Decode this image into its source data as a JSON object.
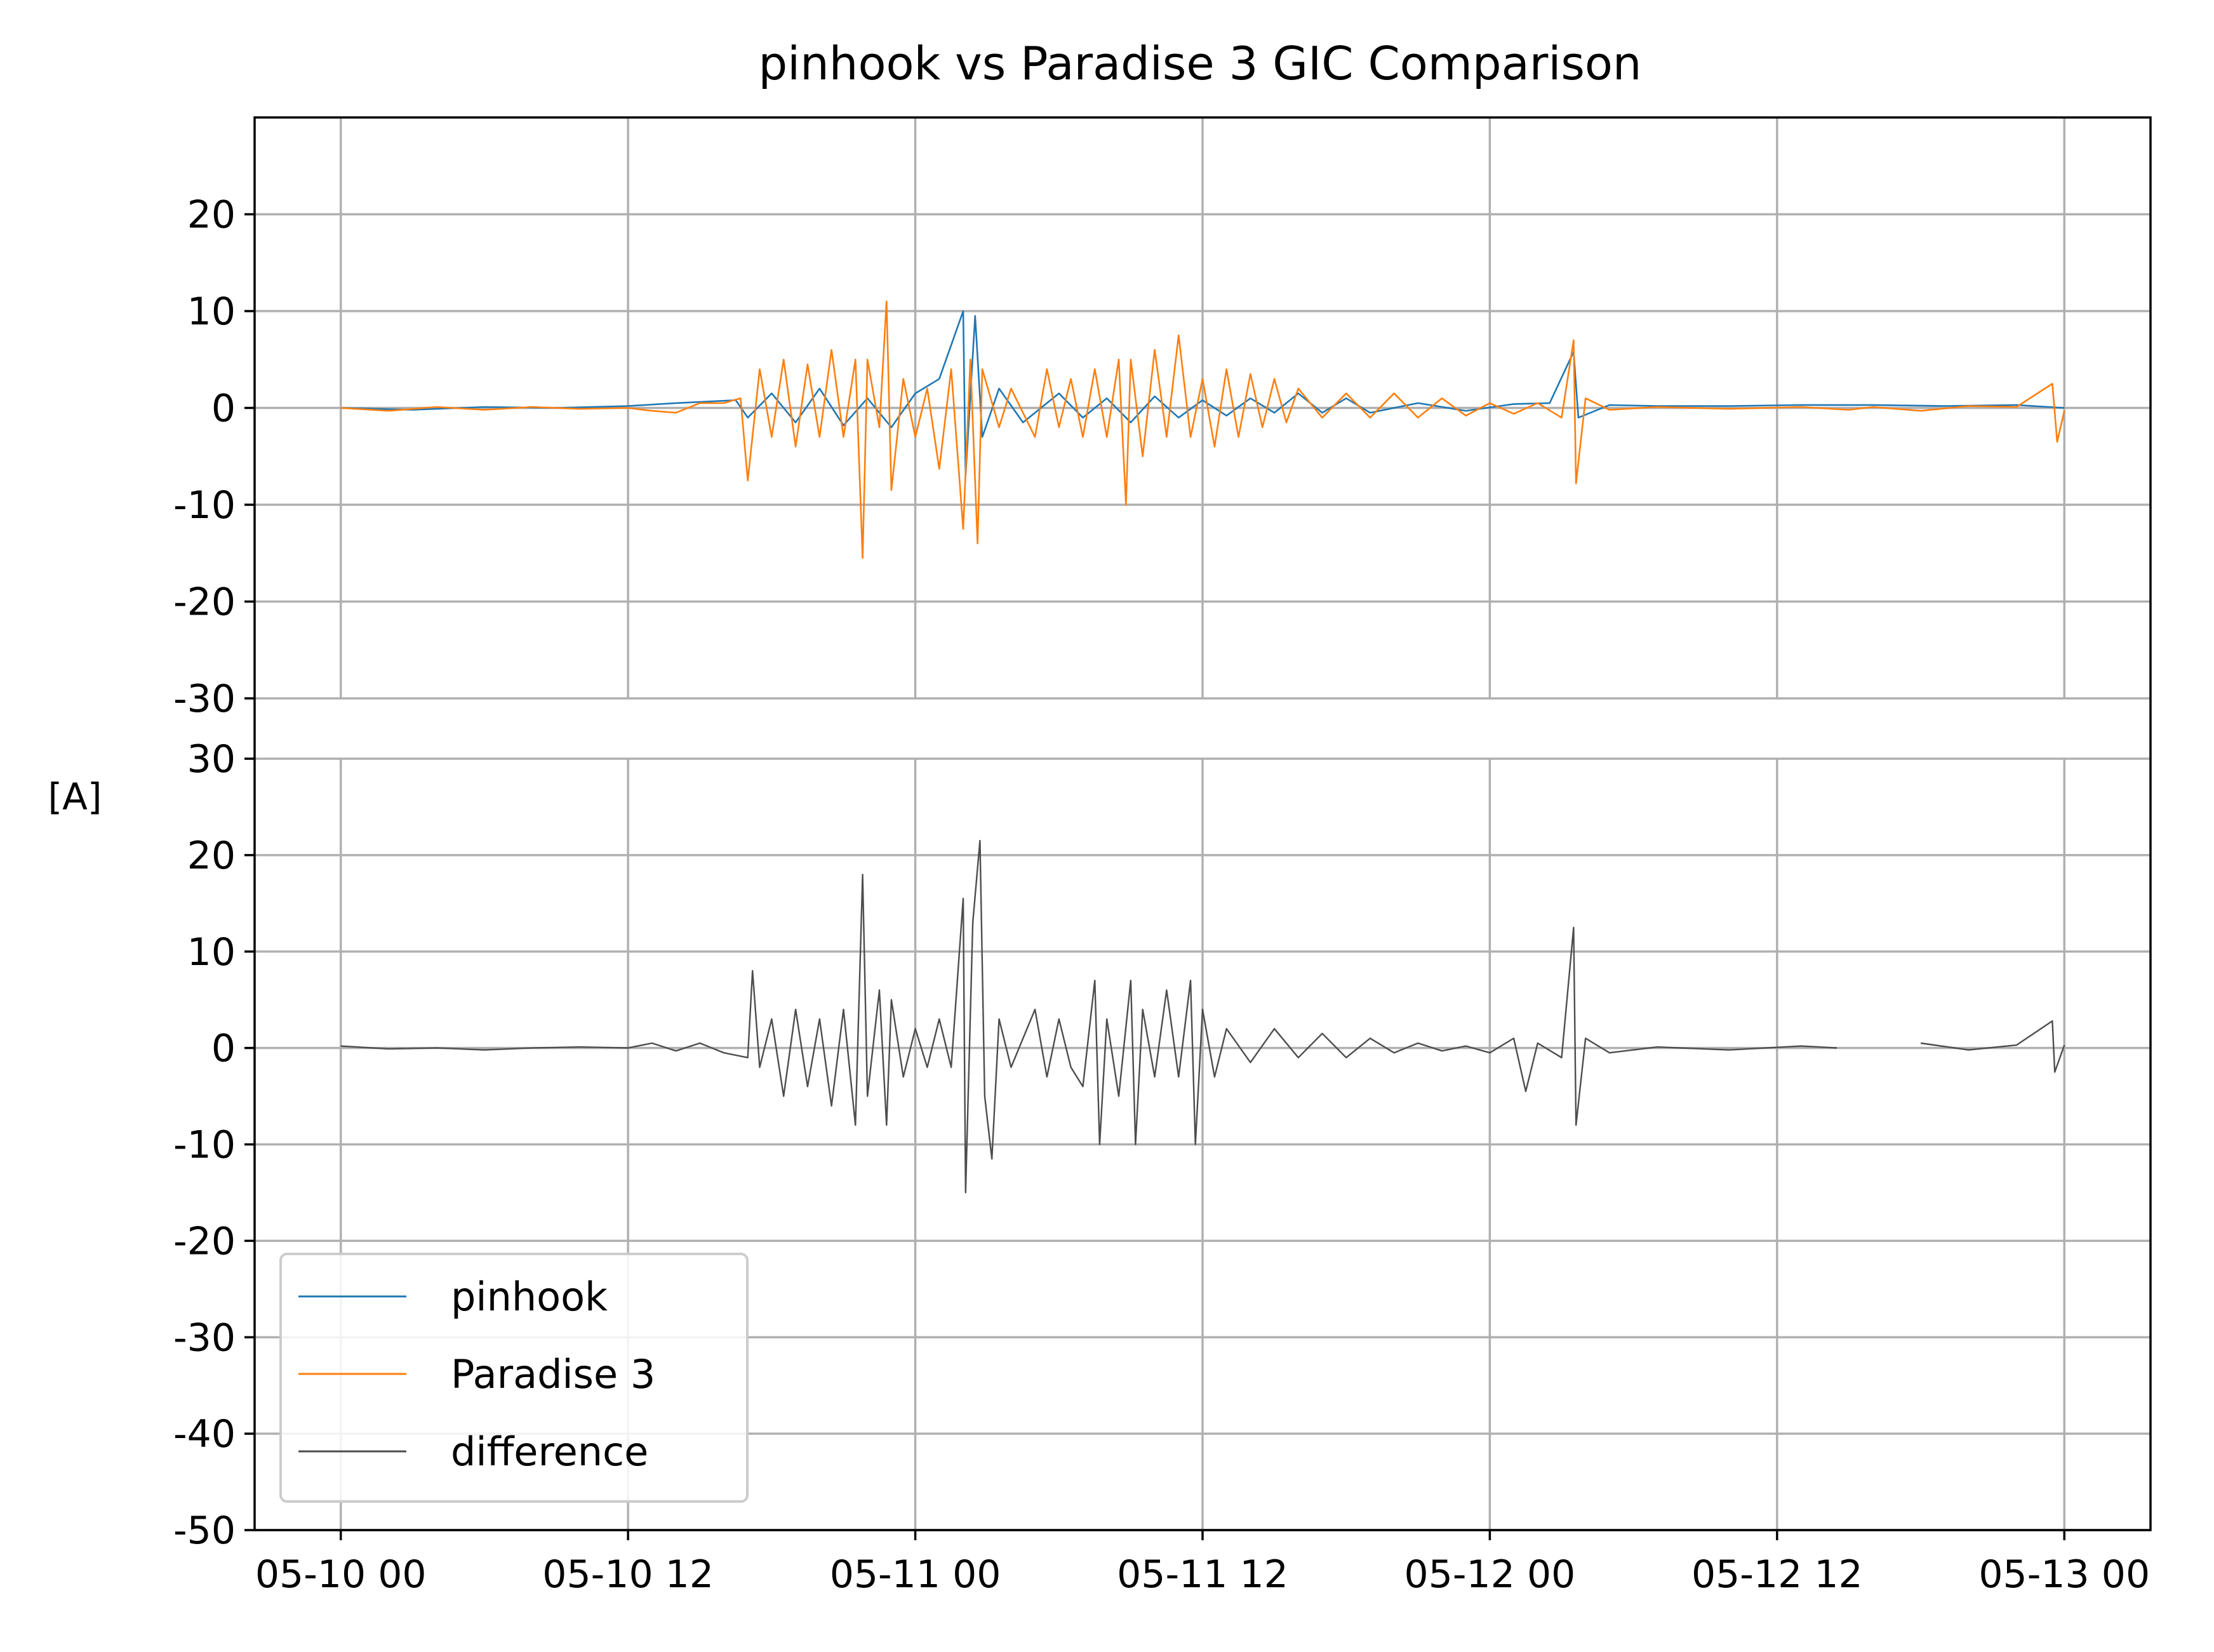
{
  "chart_data": {
    "type": "line",
    "title": "pinhook vs Paradise 3 GIC Comparison",
    "ylabel": "[A]",
    "xlabel": "",
    "x_ticks": [
      "05-10 00",
      "05-10 12",
      "05-11 00",
      "05-11 12",
      "05-12 00",
      "05-12 12",
      "05-13 00"
    ],
    "x_tick_hours": [
      0,
      12,
      24,
      36,
      48,
      60,
      72
    ],
    "x_range_hours": [
      -3.6,
      75.6
    ],
    "grid": true,
    "legend": {
      "placement": "lower-left",
      "entries": [
        "pinhook",
        "Paradise 3",
        "difference"
      ]
    },
    "panels": [
      {
        "name": "top",
        "ylim": [
          -30,
          30
        ],
        "y_ticks": [
          -30,
          -20,
          -10,
          0,
          10,
          20
        ],
        "y_tick_labels": [
          "-30",
          "-20",
          "-10",
          "0",
          "10",
          "20"
        ],
        "series": [
          {
            "name": "pinhook",
            "color": "#1f77b4",
            "points": [
              [
                0,
                0
              ],
              [
                3,
                -0.2
              ],
              [
                6,
                0.1
              ],
              [
                9,
                0
              ],
              [
                12,
                0.2
              ],
              [
                14,
                0.5
              ],
              [
                16.5,
                0.8
              ],
              [
                17,
                -1
              ],
              [
                18,
                1.5
              ],
              [
                19,
                -1.5
              ],
              [
                20,
                2
              ],
              [
                21,
                -1.8
              ],
              [
                22,
                1
              ],
              [
                23,
                -2
              ],
              [
                24,
                1.5
              ],
              [
                25,
                3
              ],
              [
                26,
                10
              ],
              [
                26.1,
                -7
              ],
              [
                26.5,
                9.5
              ],
              [
                26.8,
                -3
              ],
              [
                27.5,
                2
              ],
              [
                28.5,
                -1.5
              ],
              [
                30,
                1.5
              ],
              [
                31,
                -1
              ],
              [
                32,
                1
              ],
              [
                33,
                -1.5
              ],
              [
                34,
                1.2
              ],
              [
                35,
                -1
              ],
              [
                36,
                0.8
              ],
              [
                37,
                -0.8
              ],
              [
                38,
                1
              ],
              [
                39,
                -0.5
              ],
              [
                40,
                1.5
              ],
              [
                41,
                -0.5
              ],
              [
                42,
                1
              ],
              [
                43,
                -0.5
              ],
              [
                45,
                0.5
              ],
              [
                47,
                -0.3
              ],
              [
                49,
                0.4
              ],
              [
                50.5,
                0.5
              ],
              [
                51.5,
                5.8
              ],
              [
                51.7,
                -1
              ],
              [
                53,
                0.3
              ],
              [
                55,
                0.2
              ],
              [
                58,
                0.2
              ],
              [
                61,
                0.3
              ],
              [
                64,
                0.3
              ],
              [
                67,
                0.2
              ],
              [
                70,
                0.3
              ],
              [
                72,
                0
              ]
            ]
          },
          {
            "name": "Paradise 3",
            "color": "#ff7f0e",
            "points": [
              [
                0,
                0
              ],
              [
                2,
                -0.3
              ],
              [
                4,
                0.1
              ],
              [
                6,
                -0.2
              ],
              [
                8,
                0.1
              ],
              [
                10,
                -0.1
              ],
              [
                12,
                0
              ],
              [
                13,
                -0.3
              ],
              [
                14,
                -0.5
              ],
              [
                15,
                0.5
              ],
              [
                16,
                0.5
              ],
              [
                16.7,
                1
              ],
              [
                17,
                -7.5
              ],
              [
                17.5,
                4
              ],
              [
                18,
                -3
              ],
              [
                18.5,
                5
              ],
              [
                19,
                -4
              ],
              [
                19.5,
                4.5
              ],
              [
                20,
                -3
              ],
              [
                20.5,
                6
              ],
              [
                21,
                -3
              ],
              [
                21.5,
                5
              ],
              [
                21.8,
                -15.5
              ],
              [
                22,
                5
              ],
              [
                22.5,
                -2
              ],
              [
                22.8,
                11
              ],
              [
                23,
                -8.5
              ],
              [
                23.5,
                3
              ],
              [
                24,
                -3
              ],
              [
                24.5,
                2
              ],
              [
                25,
                -6.3
              ],
              [
                25.5,
                4
              ],
              [
                26,
                -12.5
              ],
              [
                26.3,
                5
              ],
              [
                26.6,
                -14
              ],
              [
                26.8,
                4
              ],
              [
                27.5,
                -2
              ],
              [
                28,
                2
              ],
              [
                29,
                -3
              ],
              [
                29.5,
                4
              ],
              [
                30,
                -2
              ],
              [
                30.5,
                3
              ],
              [
                31,
                -3
              ],
              [
                31.5,
                4
              ],
              [
                32,
                -3
              ],
              [
                32.5,
                5
              ],
              [
                32.8,
                -10
              ],
              [
                33,
                5
              ],
              [
                33.5,
                -5
              ],
              [
                34,
                6
              ],
              [
                34.5,
                -3
              ],
              [
                35,
                7.5
              ],
              [
                35.5,
                -3
              ],
              [
                36,
                3
              ],
              [
                36.5,
                -4
              ],
              [
                37,
                4
              ],
              [
                37.5,
                -3
              ],
              [
                38,
                3.5
              ],
              [
                38.5,
                -2
              ],
              [
                39,
                3
              ],
              [
                39.5,
                -1.5
              ],
              [
                40,
                2
              ],
              [
                41,
                -1
              ],
              [
                42,
                1.5
              ],
              [
                43,
                -1
              ],
              [
                44,
                1.5
              ],
              [
                45,
                -1
              ],
              [
                46,
                1
              ],
              [
                47,
                -0.8
              ],
              [
                48,
                0.5
              ],
              [
                49,
                -0.6
              ],
              [
                50,
                0.5
              ],
              [
                51,
                -1
              ],
              [
                51.5,
                7
              ],
              [
                51.6,
                -7.8
              ],
              [
                52,
                1
              ],
              [
                53,
                -0.2
              ],
              [
                55,
                0.1
              ],
              [
                58,
                -0.1
              ],
              [
                61,
                0.1
              ],
              [
                63,
                -0.2
              ],
              [
                64,
                0.1
              ],
              [
                66,
                -0.3
              ],
              [
                68,
                0.2
              ],
              [
                70,
                0.1
              ],
              [
                71.5,
                2.5
              ],
              [
                71.7,
                -3.5
              ],
              [
                72,
                -0.3
              ]
            ]
          }
        ]
      },
      {
        "name": "bottom",
        "ylim": [
          -50,
          30
        ],
        "y_ticks": [
          -50,
          -40,
          -30,
          -20,
          -10,
          0,
          10,
          20,
          30
        ],
        "y_tick_labels": [
          "-50",
          "-40",
          "-30",
          "-20",
          "-10",
          "0",
          "10",
          "20",
          "30"
        ],
        "series": [
          {
            "name": "difference",
            "color": "#4d4d4d",
            "points": [
              [
                0,
                0.2
              ],
              [
                2,
                -0.1
              ],
              [
                4,
                0
              ],
              [
                6,
                -0.2
              ],
              [
                8,
                0
              ],
              [
                10,
                0.1
              ],
              [
                12,
                0
              ],
              [
                13,
                0.5
              ],
              [
                14,
                -0.3
              ],
              [
                15,
                0.5
              ],
              [
                16,
                -0.5
              ],
              [
                17,
                -1
              ],
              [
                17.2,
                8
              ],
              [
                17.5,
                -2
              ],
              [
                18,
                3
              ],
              [
                18.5,
                -5
              ],
              [
                19,
                4
              ],
              [
                19.5,
                -4
              ],
              [
                20,
                3
              ],
              [
                20.5,
                -6
              ],
              [
                21,
                4
              ],
              [
                21.5,
                -8
              ],
              [
                21.8,
                18
              ],
              [
                22,
                -5
              ],
              [
                22.5,
                6
              ],
              [
                22.8,
                -8
              ],
              [
                23,
                5
              ],
              [
                23.5,
                -3
              ],
              [
                24,
                2
              ],
              [
                24.5,
                -2
              ],
              [
                25,
                3
              ],
              [
                25.5,
                -2
              ],
              [
                26,
                15.5
              ],
              [
                26.1,
                -15
              ],
              [
                26.4,
                13
              ],
              [
                26.7,
                21.5
              ],
              [
                26.9,
                -5
              ],
              [
                27.2,
                -11.5
              ],
              [
                27.5,
                3
              ],
              [
                28,
                -2
              ],
              [
                29,
                4
              ],
              [
                29.5,
                -3
              ],
              [
                30,
                3
              ],
              [
                30.5,
                -2
              ],
              [
                31,
                -4
              ],
              [
                31.5,
                7
              ],
              [
                31.7,
                -10
              ],
              [
                32,
                3
              ],
              [
                32.5,
                -5
              ],
              [
                33,
                7
              ],
              [
                33.2,
                -10
              ],
              [
                33.5,
                4
              ],
              [
                34,
                -3
              ],
              [
                34.5,
                6
              ],
              [
                35,
                -3
              ],
              [
                35.5,
                7
              ],
              [
                35.7,
                -10
              ],
              [
                36,
                4
              ],
              [
                36.5,
                -3
              ],
              [
                37,
                2
              ],
              [
                38,
                -1.5
              ],
              [
                39,
                2
              ],
              [
                40,
                -1
              ],
              [
                41,
                1.5
              ],
              [
                42,
                -1
              ],
              [
                43,
                1
              ],
              [
                44,
                -0.5
              ],
              [
                45,
                0.5
              ],
              [
                46,
                -0.3
              ],
              [
                47,
                0.2
              ],
              [
                48,
                -0.5
              ],
              [
                49,
                1
              ],
              [
                49.5,
                -4.5
              ],
              [
                50,
                0.5
              ],
              [
                51,
                -1
              ],
              [
                51.5,
                12.5
              ],
              [
                51.6,
                -8
              ],
              [
                52,
                1
              ],
              [
                53,
                -0.5
              ],
              [
                55,
                0.1
              ],
              [
                58,
                -0.2
              ],
              [
                61,
                0.2
              ],
              [
                62.5,
                0
              ],
              [
                63,
                null
              ],
              [
                66,
                0.5
              ],
              [
                68,
                -0.2
              ],
              [
                70,
                0.3
              ],
              [
                71.5,
                2.8
              ],
              [
                71.6,
                -2.5
              ],
              [
                72,
                0.3
              ]
            ]
          }
        ]
      }
    ]
  }
}
